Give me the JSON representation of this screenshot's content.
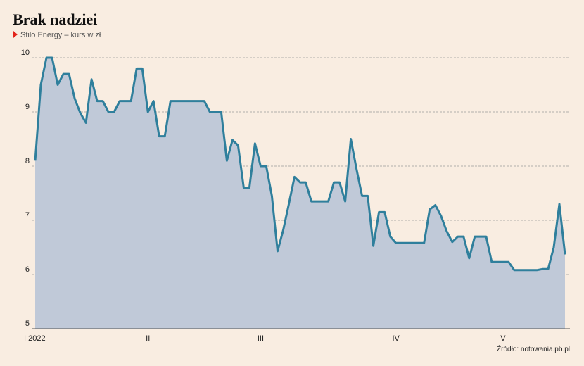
{
  "chart_data": {
    "type": "area",
    "title": "Brak nadziei",
    "subtitle": "Stilo Energy – kurs w zł",
    "source": "Źródło: notowania.pb.pl",
    "categories": [
      "I 2022",
      null,
      null,
      null,
      null,
      null,
      null,
      null,
      null,
      null,
      null,
      null,
      null,
      null,
      null,
      null,
      null,
      null,
      null,
      null,
      "II",
      null,
      null,
      null,
      null,
      null,
      null,
      null,
      null,
      null,
      null,
      null,
      null,
      null,
      null,
      null,
      null,
      null,
      null,
      null,
      "III",
      null,
      null,
      null,
      null,
      null,
      null,
      null,
      null,
      null,
      null,
      null,
      null,
      null,
      null,
      null,
      null,
      null,
      null,
      null,
      null,
      null,
      null,
      null,
      "IV",
      null,
      null,
      null,
      null,
      null,
      null,
      null,
      null,
      null,
      null,
      null,
      null,
      null,
      null,
      null,
      null,
      null,
      null,
      "V",
      null,
      null,
      null,
      null,
      null,
      null,
      null,
      null,
      null,
      null,
      null
    ],
    "values": [
      8.1,
      9.5,
      10.0,
      10.0,
      9.5,
      9.7,
      9.7,
      9.25,
      8.98,
      8.8,
      9.6,
      9.2,
      9.2,
      9.0,
      9.0,
      9.2,
      9.2,
      9.2,
      9.8,
      9.8,
      9.0,
      9.2,
      8.55,
      8.55,
      9.2,
      9.2,
      9.2,
      9.2,
      9.2,
      9.2,
      9.2,
      9.0,
      9.0,
      9.0,
      8.1,
      8.48,
      8.38,
      7.6,
      7.6,
      8.42,
      8.0,
      8.0,
      7.45,
      6.43,
      6.82,
      7.3,
      7.8,
      7.7,
      7.7,
      7.35,
      7.35,
      7.35,
      7.35,
      7.7,
      7.7,
      7.35,
      8.5,
      7.95,
      7.45,
      7.45,
      6.53,
      7.15,
      7.15,
      6.7,
      6.58,
      6.58,
      6.58,
      6.58,
      6.58,
      6.58,
      7.2,
      7.28,
      7.08,
      6.8,
      6.6,
      6.7,
      6.7,
      6.3,
      6.7,
      6.7,
      6.7,
      6.23,
      6.23,
      6.23,
      6.23,
      6.08,
      6.08,
      6.08,
      6.08,
      6.08,
      6.1,
      6.1,
      6.5,
      7.3,
      6.37
    ],
    "color": "#2f7f9c",
    "fill": "#c0c9d8",
    "ylim": [
      5,
      10
    ],
    "yticks": [
      5,
      6,
      7,
      8,
      9,
      10
    ],
    "grid": true
  }
}
